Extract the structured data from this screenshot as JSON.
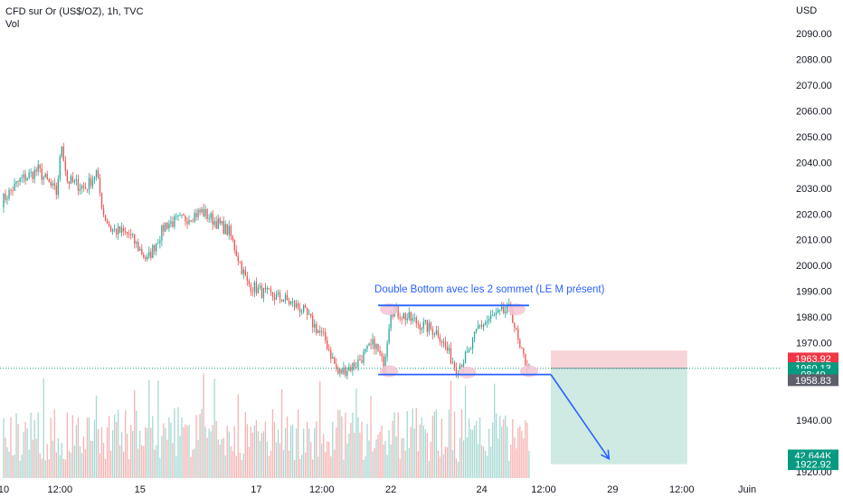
{
  "header": {
    "title": "CFD sur Or (US$/OZ), 1h, TVC",
    "volume_label": "Vol"
  },
  "colors": {
    "up": "#26a69a",
    "down": "#ef5350",
    "up_volume": "#a6d9d3",
    "down_volume": "#f6b3b2",
    "annotation": "#2962ff",
    "annotation_text": "#2962ff",
    "stop_zone": "#f7d4d8",
    "target_zone": "#cfe9e3",
    "highlight_circle": "#f4c6d3",
    "price_line": "#089981"
  },
  "chart_data": {
    "type": "candlestick",
    "title": "CFD sur Or (US$/OZ), 1h, TVC",
    "currency": "USD",
    "ylim": [
      1916,
      2098
    ],
    "y_ticks": [
      1920,
      1940,
      1970,
      1980,
      1990,
      2000,
      2010,
      2020,
      2030,
      2040,
      2050,
      2060,
      2070,
      2080,
      2090
    ],
    "x_ticks": [
      {
        "label": "10",
        "t": 1
      },
      {
        "label": "12:00",
        "t": 32
      },
      {
        "label": "15",
        "t": 76
      },
      {
        "label": "17",
        "t": 140
      },
      {
        "label": "12:00",
        "t": 176
      },
      {
        "label": "22",
        "t": 214
      },
      {
        "label": "24",
        "t": 264
      },
      {
        "label": "12:00",
        "t": 298
      },
      {
        "label": "29",
        "t": 336
      },
      {
        "label": "12:00",
        "t": 374
      },
      {
        "label": "Juin",
        "t": 410
      }
    ],
    "x_range": [
      -16,
      420
    ],
    "last_t": 290,
    "key_points": [
      {
        "t": 0,
        "price": 2025
      },
      {
        "t": 10,
        "price": 2033
      },
      {
        "t": 20,
        "price": 2037
      },
      {
        "t": 30,
        "price": 2028
      },
      {
        "t": 33,
        "price": 2047
      },
      {
        "t": 36,
        "price": 2033
      },
      {
        "t": 46,
        "price": 2030
      },
      {
        "t": 52,
        "price": 2036
      },
      {
        "t": 56,
        "price": 2020
      },
      {
        "t": 60,
        "price": 2014
      },
      {
        "t": 70,
        "price": 2012
      },
      {
        "t": 80,
        "price": 2002
      },
      {
        "t": 90,
        "price": 2016
      },
      {
        "t": 100,
        "price": 2018
      },
      {
        "t": 110,
        "price": 2021
      },
      {
        "t": 125,
        "price": 2013
      },
      {
        "t": 135,
        "price": 1993
      },
      {
        "t": 145,
        "price": 1989
      },
      {
        "t": 155,
        "price": 1987
      },
      {
        "t": 165,
        "price": 1983
      },
      {
        "t": 178,
        "price": 1971
      },
      {
        "t": 185,
        "price": 1958
      },
      {
        "t": 195,
        "price": 1962
      },
      {
        "t": 205,
        "price": 1970
      },
      {
        "t": 210,
        "price": 1961
      },
      {
        "t": 214,
        "price": 1983
      },
      {
        "t": 225,
        "price": 1979
      },
      {
        "t": 240,
        "price": 1974
      },
      {
        "t": 250,
        "price": 1960
      },
      {
        "t": 257,
        "price": 1966
      },
      {
        "t": 262,
        "price": 1976
      },
      {
        "t": 270,
        "price": 1980
      },
      {
        "t": 280,
        "price": 1983
      },
      {
        "t": 285,
        "price": 1967
      },
      {
        "t": 290,
        "price": 1960
      }
    ],
    "price_labels": [
      {
        "value": "1963.92",
        "price": 1963.92,
        "style": "down"
      },
      {
        "value": "1960.13",
        "price": 1960.13,
        "style": "up"
      },
      {
        "value": "08:49",
        "price": 1957.7,
        "style": "up"
      },
      {
        "value": "1958.83",
        "price": 1955.5,
        "style": "gray"
      },
      {
        "value": "42.644K",
        "price": 1926.3,
        "style": "up"
      },
      {
        "value": "1922.92",
        "price": 1922.92,
        "style": "up"
      }
    ],
    "current_price": 1960.13,
    "annotations": {
      "text": "Double Bottom avec les 2 sommet (LE M présent)",
      "text_t": 205,
      "text_price": 1989.5,
      "resistance": {
        "price": 1984.5,
        "t_start": 207,
        "t_end": 290
      },
      "support": {
        "price": 1957.7,
        "t_start": 207,
        "t_end": 302
      },
      "arrow": {
        "t_start": 302,
        "price_start": 1957.7,
        "t_end": 334,
        "price_end": 1925
      },
      "stop_zone": {
        "top": 1967.0,
        "bottom": 1960.13,
        "t_start": 302,
        "t_end": 377
      },
      "target_zone": {
        "top": 1960.13,
        "bottom": 1922.92,
        "t_start": 302,
        "t_end": 377
      },
      "circles": [
        {
          "t": 213,
          "price": 1983
        },
        {
          "t": 213,
          "price": 1959
        },
        {
          "t": 256,
          "price": 1958.5
        },
        {
          "t": 283,
          "price": 1983
        },
        {
          "t": 290,
          "price": 1959
        }
      ]
    }
  }
}
